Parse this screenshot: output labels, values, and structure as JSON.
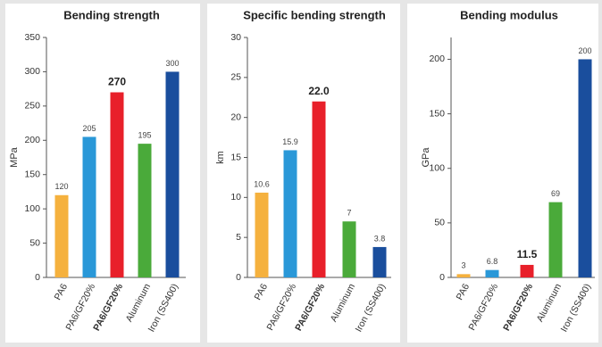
{
  "chart_data": [
    {
      "type": "bar",
      "title": "Bending strength",
      "y_label": "MPa",
      "categories": [
        "PA6",
        "PA6/GF20%",
        "PA6/GF20%",
        "Aluminum",
        "Iron (SS400)"
      ],
      "values": [
        120,
        205,
        270,
        195,
        300
      ],
      "value_labels": [
        "120",
        "205",
        "270",
        "195",
        "300"
      ],
      "colors": [
        "#f5b13e",
        "#2a98d8",
        "#e8202a",
        "#4aaa3a",
        "#1a4e9d"
      ],
      "ylim": [
        0,
        350
      ],
      "yticks": [
        0,
        50,
        100,
        150,
        200,
        250,
        300,
        350
      ]
    },
    {
      "type": "bar",
      "title": "Specific bending strength",
      "y_label": "km",
      "categories": [
        "PA6",
        "PA6/GF20%",
        "PA6/GF20%",
        "Aluminum",
        "Iron (SS400)"
      ],
      "values": [
        10.6,
        15.9,
        22.0,
        7,
        3.8
      ],
      "value_labels": [
        "10.6",
        "15.9",
        "22.0",
        "7",
        "3.8"
      ],
      "colors": [
        "#f5b13e",
        "#2a98d8",
        "#e8202a",
        "#4aaa3a",
        "#1a4e9d"
      ],
      "ylim": [
        0,
        30
      ],
      "yticks": [
        0,
        5,
        10,
        15,
        20,
        25,
        30
      ]
    },
    {
      "type": "bar",
      "title": "Bending modulus",
      "y_label": "GPa",
      "categories": [
        "PA6",
        "PA6/GF20%",
        "PA6/GF20%",
        "Aluminum",
        "Iron (SS400)"
      ],
      "values": [
        3,
        6.8,
        11.5,
        69,
        200
      ],
      "value_labels": [
        "3",
        "6.8",
        "11.5",
        "69",
        "200"
      ],
      "colors": [
        "#f5b13e",
        "#2a98d8",
        "#e8202a",
        "#4aaa3a",
        "#1a4e9d"
      ],
      "ylim": [
        0,
        220
      ],
      "yticks": [
        0,
        50,
        100,
        150,
        200
      ]
    }
  ]
}
